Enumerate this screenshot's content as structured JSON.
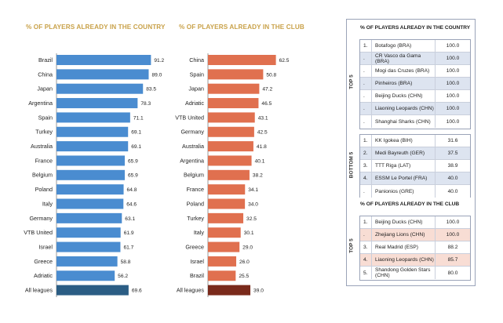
{
  "chart_data": [
    {
      "type": "bar",
      "orientation": "horizontal",
      "title": "% OF PLAYERS ALREADY IN THE COUNTRY",
      "categories": [
        "Brazil",
        "China",
        "Japan",
        "Argentina",
        "Spain",
        "Turkey",
        "Australia",
        "France",
        "Belgium",
        "Poland",
        "Italy",
        "Germany",
        "VTB United",
        "Israel",
        "Greece",
        "Adriatic",
        "All leagues"
      ],
      "values": [
        91.2,
        89.0,
        83.5,
        78.3,
        71.1,
        69.1,
        69.1,
        65.9,
        65.9,
        64.8,
        64.6,
        63.1,
        61.9,
        61.7,
        58.8,
        56.2,
        69.6
      ],
      "value_labels": [
        "91.2",
        "89.0",
        "83.5",
        "78.3",
        "71.1",
        "69.1",
        "69.1",
        "65.9",
        "65.9",
        "64.8",
        "64.6",
        "63.1",
        "61.9",
        "61.7",
        "58.8",
        "56.2",
        "69.6"
      ],
      "xlim": [
        0,
        100
      ],
      "color": "#4a8cd0",
      "highlight_color": "#2b5d84"
    },
    {
      "type": "bar",
      "orientation": "horizontal",
      "title": "% OF PLAYERS ALREADY IN THE CLUB",
      "categories": [
        "China",
        "Spain",
        "Japan",
        "Adriatic",
        "VTB United",
        "Germany",
        "Australia",
        "Argentina",
        "Belgium",
        "France",
        "Poland",
        "Turkey",
        "Italy",
        "Greece",
        "Israel",
        "Brazil",
        "All leagues"
      ],
      "values": [
        62.5,
        50.8,
        47.2,
        46.5,
        43.1,
        42.5,
        41.8,
        40.1,
        38.2,
        34.1,
        34.0,
        32.5,
        30.1,
        29.0,
        26.0,
        25.5,
        39.0
      ],
      "value_labels": [
        "62.5",
        "50.8",
        "47.2",
        "46.5",
        "43.1",
        "42.5",
        "41.8",
        "40.1",
        "38.2",
        "34.1",
        "34.0",
        "32.5",
        "30.1",
        "29.0",
        "26.0",
        "25.5",
        "39.0"
      ],
      "xlim": [
        0,
        70
      ],
      "color": "#e0704f",
      "highlight_color": "#7a2a1b"
    }
  ],
  "tables": {
    "country": {
      "title": "% OF PLAYERS ALREADY IN THE COUNTRY",
      "top_label": "TOP 5",
      "bottom_label": "BOTTOM 5",
      "top": [
        {
          "rank": "1.",
          "team": "Botafogo (BRA)",
          "value": "100.0",
          "shade": "none"
        },
        {
          "rank": ".",
          "team": "CR Vasco da Gama (BRA)",
          "value": "100.0",
          "shade": "blue"
        },
        {
          "rank": ".",
          "team": "Mogi das Cruzes (BRA)",
          "value": "100.0",
          "shade": "none"
        },
        {
          "rank": ".",
          "team": "Pinheiros (BRA)",
          "value": "100.0",
          "shade": "blue"
        },
        {
          "rank": ".",
          "team": "Beijing Ducks (CHN)",
          "value": "100.0",
          "shade": "none"
        },
        {
          "rank": ".",
          "team": "Liaoning Leopards (CHN)",
          "value": "100.0",
          "shade": "blue"
        },
        {
          "rank": ".",
          "team": "Shanghai Sharks (CHN)",
          "value": "100.0",
          "shade": "none"
        }
      ],
      "bottom": [
        {
          "rank": "1.",
          "team": "KK Igokea (BIH)",
          "value": "31.6",
          "shade": "none"
        },
        {
          "rank": "2.",
          "team": "Medi Bayreuth (GER)",
          "value": "37.5",
          "shade": "blue"
        },
        {
          "rank": "3.",
          "team": "TTT Riga (LAT)",
          "value": "38.9",
          "shade": "none"
        },
        {
          "rank": "4.",
          "team": "ESSM Le Portel (FRA)",
          "value": "40.0",
          "shade": "blue"
        },
        {
          "rank": ".",
          "team": "Panionios (GRE)",
          "value": "40.0",
          "shade": "none"
        }
      ]
    },
    "club": {
      "title": "% OF PLAYERS ALREADY IN THE CLUB",
      "top_label": "TOP 5",
      "top": [
        {
          "rank": "1.",
          "team": "Beijing Ducks (CHN)",
          "value": "100.0",
          "shade": "none"
        },
        {
          "rank": ".",
          "team": "Zhejiang Lions (CHN)",
          "value": "100.0",
          "shade": "salmon"
        },
        {
          "rank": "3.",
          "team": "Real Madrid (ESP)",
          "value": "88.2",
          "shade": "none"
        },
        {
          "rank": "4.",
          "team": "Liaoning Leopards (CHN)",
          "value": "85.7",
          "shade": "salmon"
        },
        {
          "rank": "5.",
          "team": "Shandong Golden Stars (CHN)",
          "value": "80.0",
          "shade": "none"
        }
      ]
    }
  }
}
